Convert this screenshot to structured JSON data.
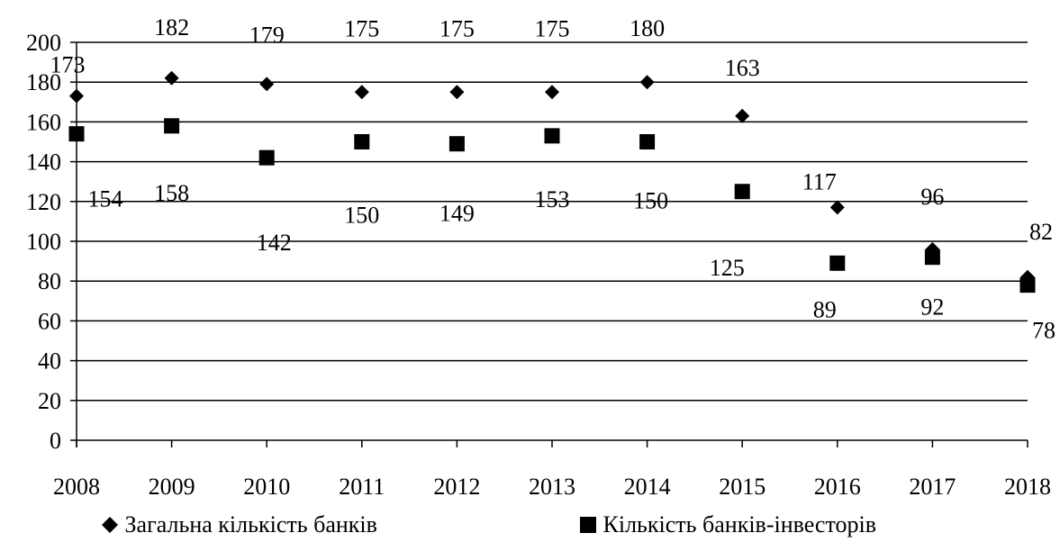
{
  "chart_data": {
    "type": "scatter",
    "title": "",
    "xlabel": "",
    "ylabel": "",
    "categories": [
      "2008",
      "2009",
      "2010",
      "2011",
      "2012",
      "2013",
      "2014",
      "2015",
      "2016",
      "2017",
      "2018"
    ],
    "ylim": [
      0,
      200
    ],
    "yticks": [
      "0",
      "20",
      "40",
      "60",
      "80",
      "100",
      "120",
      "140",
      "160",
      "180",
      "200"
    ],
    "grid": "horizontal",
    "legend_position": "bottom",
    "series": [
      {
        "name": "Загальна кількість банків",
        "marker": "diamond",
        "color": "#000000",
        "values": [
          173,
          182,
          179,
          175,
          175,
          175,
          180,
          163,
          117,
          96,
          82
        ],
        "labels": [
          "173",
          "182",
          "179",
          "175",
          "175",
          "175",
          "180",
          "163",
          "117",
          "96",
          "82"
        ]
      },
      {
        "name": "Кількість банків-інвесторів",
        "marker": "square",
        "color": "#000000",
        "values": [
          154,
          158,
          142,
          150,
          149,
          153,
          150,
          125,
          89,
          92,
          78
        ],
        "labels": [
          "154",
          "158",
          "142",
          "150",
          "149",
          "153",
          "150",
          "125",
          "89",
          "92",
          "78"
        ]
      }
    ]
  }
}
